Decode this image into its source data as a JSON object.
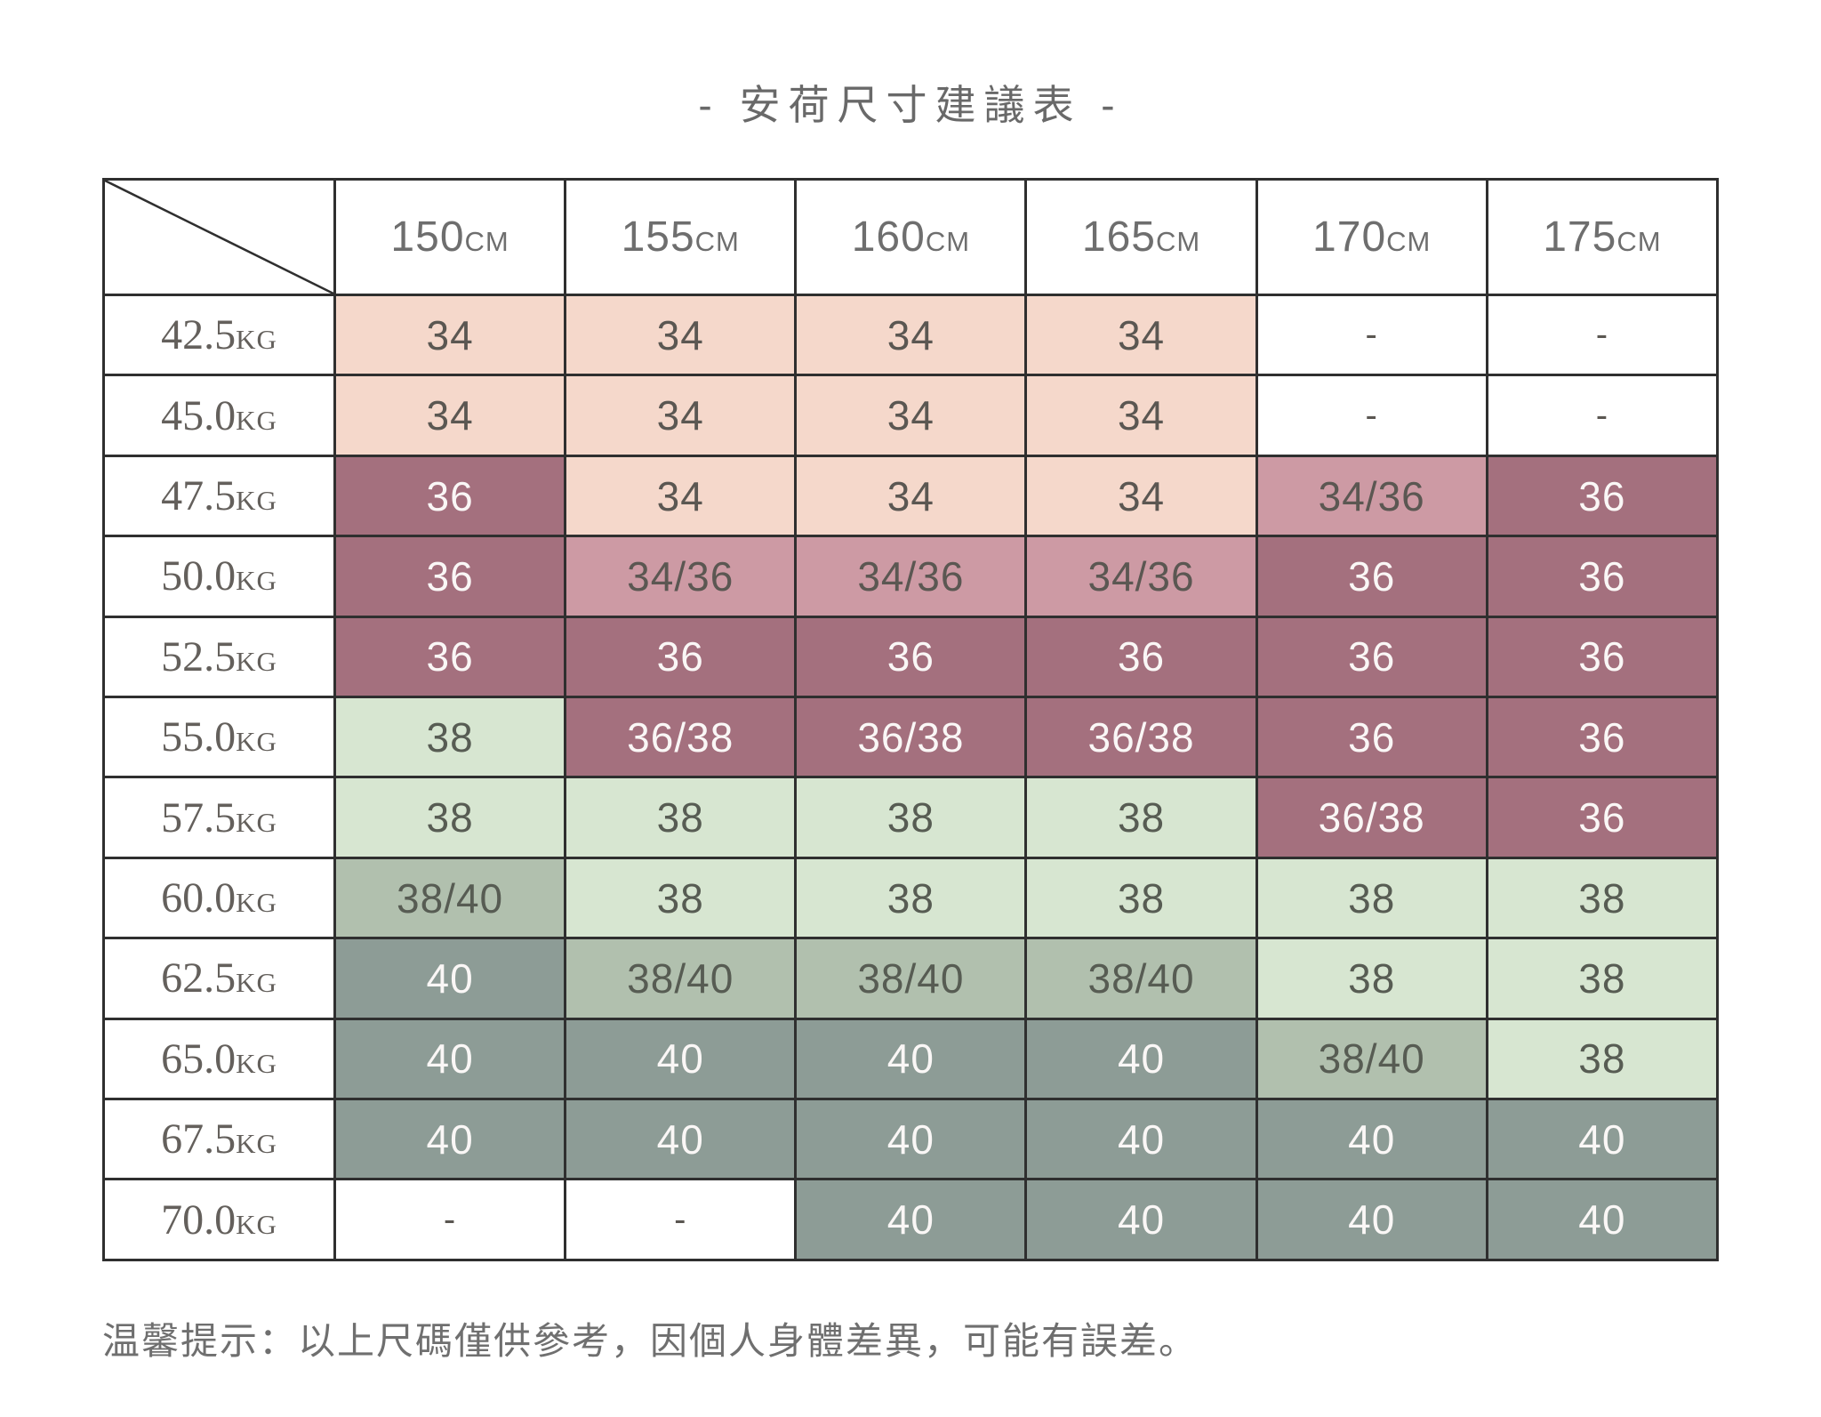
{
  "page": {
    "title": "- 安荷尺寸建議表 -",
    "footer_note": "温馨提示：以上尺碼僅供參考，因個人身體差異，可能有誤差。"
  },
  "colors": {
    "border": "#2f2f2f",
    "title_text": "#696969",
    "header_text": "#6e6e6e",
    "row_header_text": "#64605c",
    "cell_dark_text": "#5b5752",
    "cell_green_text": "#575c53",
    "cell_light_text": "#faf7f6",
    "footer_text": "#6f6f6f",
    "size34_bg": "#f5d8cb",
    "size3436_bg": "#cd9aa4",
    "size36_bg": "#a4707e",
    "size38_bg": "#d7e6d1",
    "size3840_bg": "#b1c0ae",
    "size40_bg": "#8d9c96",
    "empty_bg": "#ffffff"
  },
  "chart_data": {
    "type": "table",
    "title": "- 安荷尺寸建議表 -",
    "col_headers": [
      "150CM",
      "155CM",
      "160CM",
      "165CM",
      "170CM",
      "175CM"
    ],
    "row_headers": [
      "42.5KG",
      "45.0KG",
      "47.5KG",
      "50.0KG",
      "52.5KG",
      "55.0KG",
      "57.5KG",
      "60.0KG",
      "62.5KG",
      "65.0KG",
      "67.5KG",
      "70.0KG"
    ],
    "cells": [
      [
        "34",
        "34",
        "34",
        "34",
        "-",
        "-"
      ],
      [
        "34",
        "34",
        "34",
        "34",
        "-",
        "-"
      ],
      [
        "36",
        "34",
        "34",
        "34",
        "34/36",
        "36"
      ],
      [
        "36",
        "34/36",
        "34/36",
        "34/36",
        "36",
        "36"
      ],
      [
        "36",
        "36",
        "36",
        "36",
        "36",
        "36"
      ],
      [
        "38",
        "36/38",
        "36/38",
        "36/38",
        "36",
        "36"
      ],
      [
        "38",
        "38",
        "38",
        "38",
        "36/38",
        "36"
      ],
      [
        "38/40",
        "38",
        "38",
        "38",
        "38",
        "38"
      ],
      [
        "40",
        "38/40",
        "38/40",
        "38/40",
        "38",
        "38"
      ],
      [
        "40",
        "40",
        "40",
        "40",
        "38/40",
        "38"
      ],
      [
        "40",
        "40",
        "40",
        "40",
        "40",
        "40"
      ],
      [
        "-",
        "-",
        "40",
        "40",
        "40",
        "40"
      ]
    ]
  },
  "table": {
    "col_headers": [
      {
        "value": "150",
        "unit": "CM"
      },
      {
        "value": "155",
        "unit": "CM"
      },
      {
        "value": "160",
        "unit": "CM"
      },
      {
        "value": "165",
        "unit": "CM"
      },
      {
        "value": "170",
        "unit": "CM"
      },
      {
        "value": "175",
        "unit": "CM"
      }
    ],
    "rows": [
      {
        "weight": "42.5",
        "unit": "KG",
        "cells": [
          {
            "text": "34",
            "variant": "s34"
          },
          {
            "text": "34",
            "variant": "s34"
          },
          {
            "text": "34",
            "variant": "s34"
          },
          {
            "text": "34",
            "variant": "s34"
          },
          {
            "text": "-",
            "variant": "empty"
          },
          {
            "text": "-",
            "variant": "empty"
          }
        ]
      },
      {
        "weight": "45.0",
        "unit": "KG",
        "cells": [
          {
            "text": "34",
            "variant": "s34"
          },
          {
            "text": "34",
            "variant": "s34"
          },
          {
            "text": "34",
            "variant": "s34"
          },
          {
            "text": "34",
            "variant": "s34"
          },
          {
            "text": "-",
            "variant": "empty"
          },
          {
            "text": "-",
            "variant": "empty"
          }
        ]
      },
      {
        "weight": "47.5",
        "unit": "KG",
        "cells": [
          {
            "text": "36",
            "variant": "s36"
          },
          {
            "text": "34",
            "variant": "s34"
          },
          {
            "text": "34",
            "variant": "s34"
          },
          {
            "text": "34",
            "variant": "s34"
          },
          {
            "text": "34/36",
            "variant": "s3436"
          },
          {
            "text": "36",
            "variant": "s36"
          }
        ]
      },
      {
        "weight": "50.0",
        "unit": "KG",
        "cells": [
          {
            "text": "36",
            "variant": "s36"
          },
          {
            "text": "34/36",
            "variant": "s3436"
          },
          {
            "text": "34/36",
            "variant": "s3436"
          },
          {
            "text": "34/36",
            "variant": "s3436"
          },
          {
            "text": "36",
            "variant": "s36"
          },
          {
            "text": "36",
            "variant": "s36"
          }
        ]
      },
      {
        "weight": "52.5",
        "unit": "KG",
        "cells": [
          {
            "text": "36",
            "variant": "s36"
          },
          {
            "text": "36",
            "variant": "s36"
          },
          {
            "text": "36",
            "variant": "s36"
          },
          {
            "text": "36",
            "variant": "s36"
          },
          {
            "text": "36",
            "variant": "s36"
          },
          {
            "text": "36",
            "variant": "s36"
          }
        ]
      },
      {
        "weight": "55.0",
        "unit": "KG",
        "cells": [
          {
            "text": "38",
            "variant": "s38"
          },
          {
            "text": "36/38",
            "variant": "s36"
          },
          {
            "text": "36/38",
            "variant": "s36"
          },
          {
            "text": "36/38",
            "variant": "s36"
          },
          {
            "text": "36",
            "variant": "s36"
          },
          {
            "text": "36",
            "variant": "s36"
          }
        ]
      },
      {
        "weight": "57.5",
        "unit": "KG",
        "cells": [
          {
            "text": "38",
            "variant": "s38"
          },
          {
            "text": "38",
            "variant": "s38"
          },
          {
            "text": "38",
            "variant": "s38"
          },
          {
            "text": "38",
            "variant": "s38"
          },
          {
            "text": "36/38",
            "variant": "s36"
          },
          {
            "text": "36",
            "variant": "s36"
          }
        ]
      },
      {
        "weight": "60.0",
        "unit": "KG",
        "cells": [
          {
            "text": "38/40",
            "variant": "s3840"
          },
          {
            "text": "38",
            "variant": "s38"
          },
          {
            "text": "38",
            "variant": "s38"
          },
          {
            "text": "38",
            "variant": "s38"
          },
          {
            "text": "38",
            "variant": "s38"
          },
          {
            "text": "38",
            "variant": "s38"
          }
        ]
      },
      {
        "weight": "62.5",
        "unit": "KG",
        "cells": [
          {
            "text": "40",
            "variant": "s40"
          },
          {
            "text": "38/40",
            "variant": "s3840"
          },
          {
            "text": "38/40",
            "variant": "s3840"
          },
          {
            "text": "38/40",
            "variant": "s3840"
          },
          {
            "text": "38",
            "variant": "s38"
          },
          {
            "text": "38",
            "variant": "s38"
          }
        ]
      },
      {
        "weight": "65.0",
        "unit": "KG",
        "cells": [
          {
            "text": "40",
            "variant": "s40"
          },
          {
            "text": "40",
            "variant": "s40"
          },
          {
            "text": "40",
            "variant": "s40"
          },
          {
            "text": "40",
            "variant": "s40"
          },
          {
            "text": "38/40",
            "variant": "s3840"
          },
          {
            "text": "38",
            "variant": "s38"
          }
        ]
      },
      {
        "weight": "67.5",
        "unit": "KG",
        "cells": [
          {
            "text": "40",
            "variant": "s40"
          },
          {
            "text": "40",
            "variant": "s40"
          },
          {
            "text": "40",
            "variant": "s40"
          },
          {
            "text": "40",
            "variant": "s40"
          },
          {
            "text": "40",
            "variant": "s40"
          },
          {
            "text": "40",
            "variant": "s40"
          }
        ]
      },
      {
        "weight": "70.0",
        "unit": "KG",
        "cells": [
          {
            "text": "-",
            "variant": "empty"
          },
          {
            "text": "-",
            "variant": "empty"
          },
          {
            "text": "40",
            "variant": "s40"
          },
          {
            "text": "40",
            "variant": "s40"
          },
          {
            "text": "40",
            "variant": "s40"
          },
          {
            "text": "40",
            "variant": "s40"
          }
        ]
      }
    ]
  }
}
